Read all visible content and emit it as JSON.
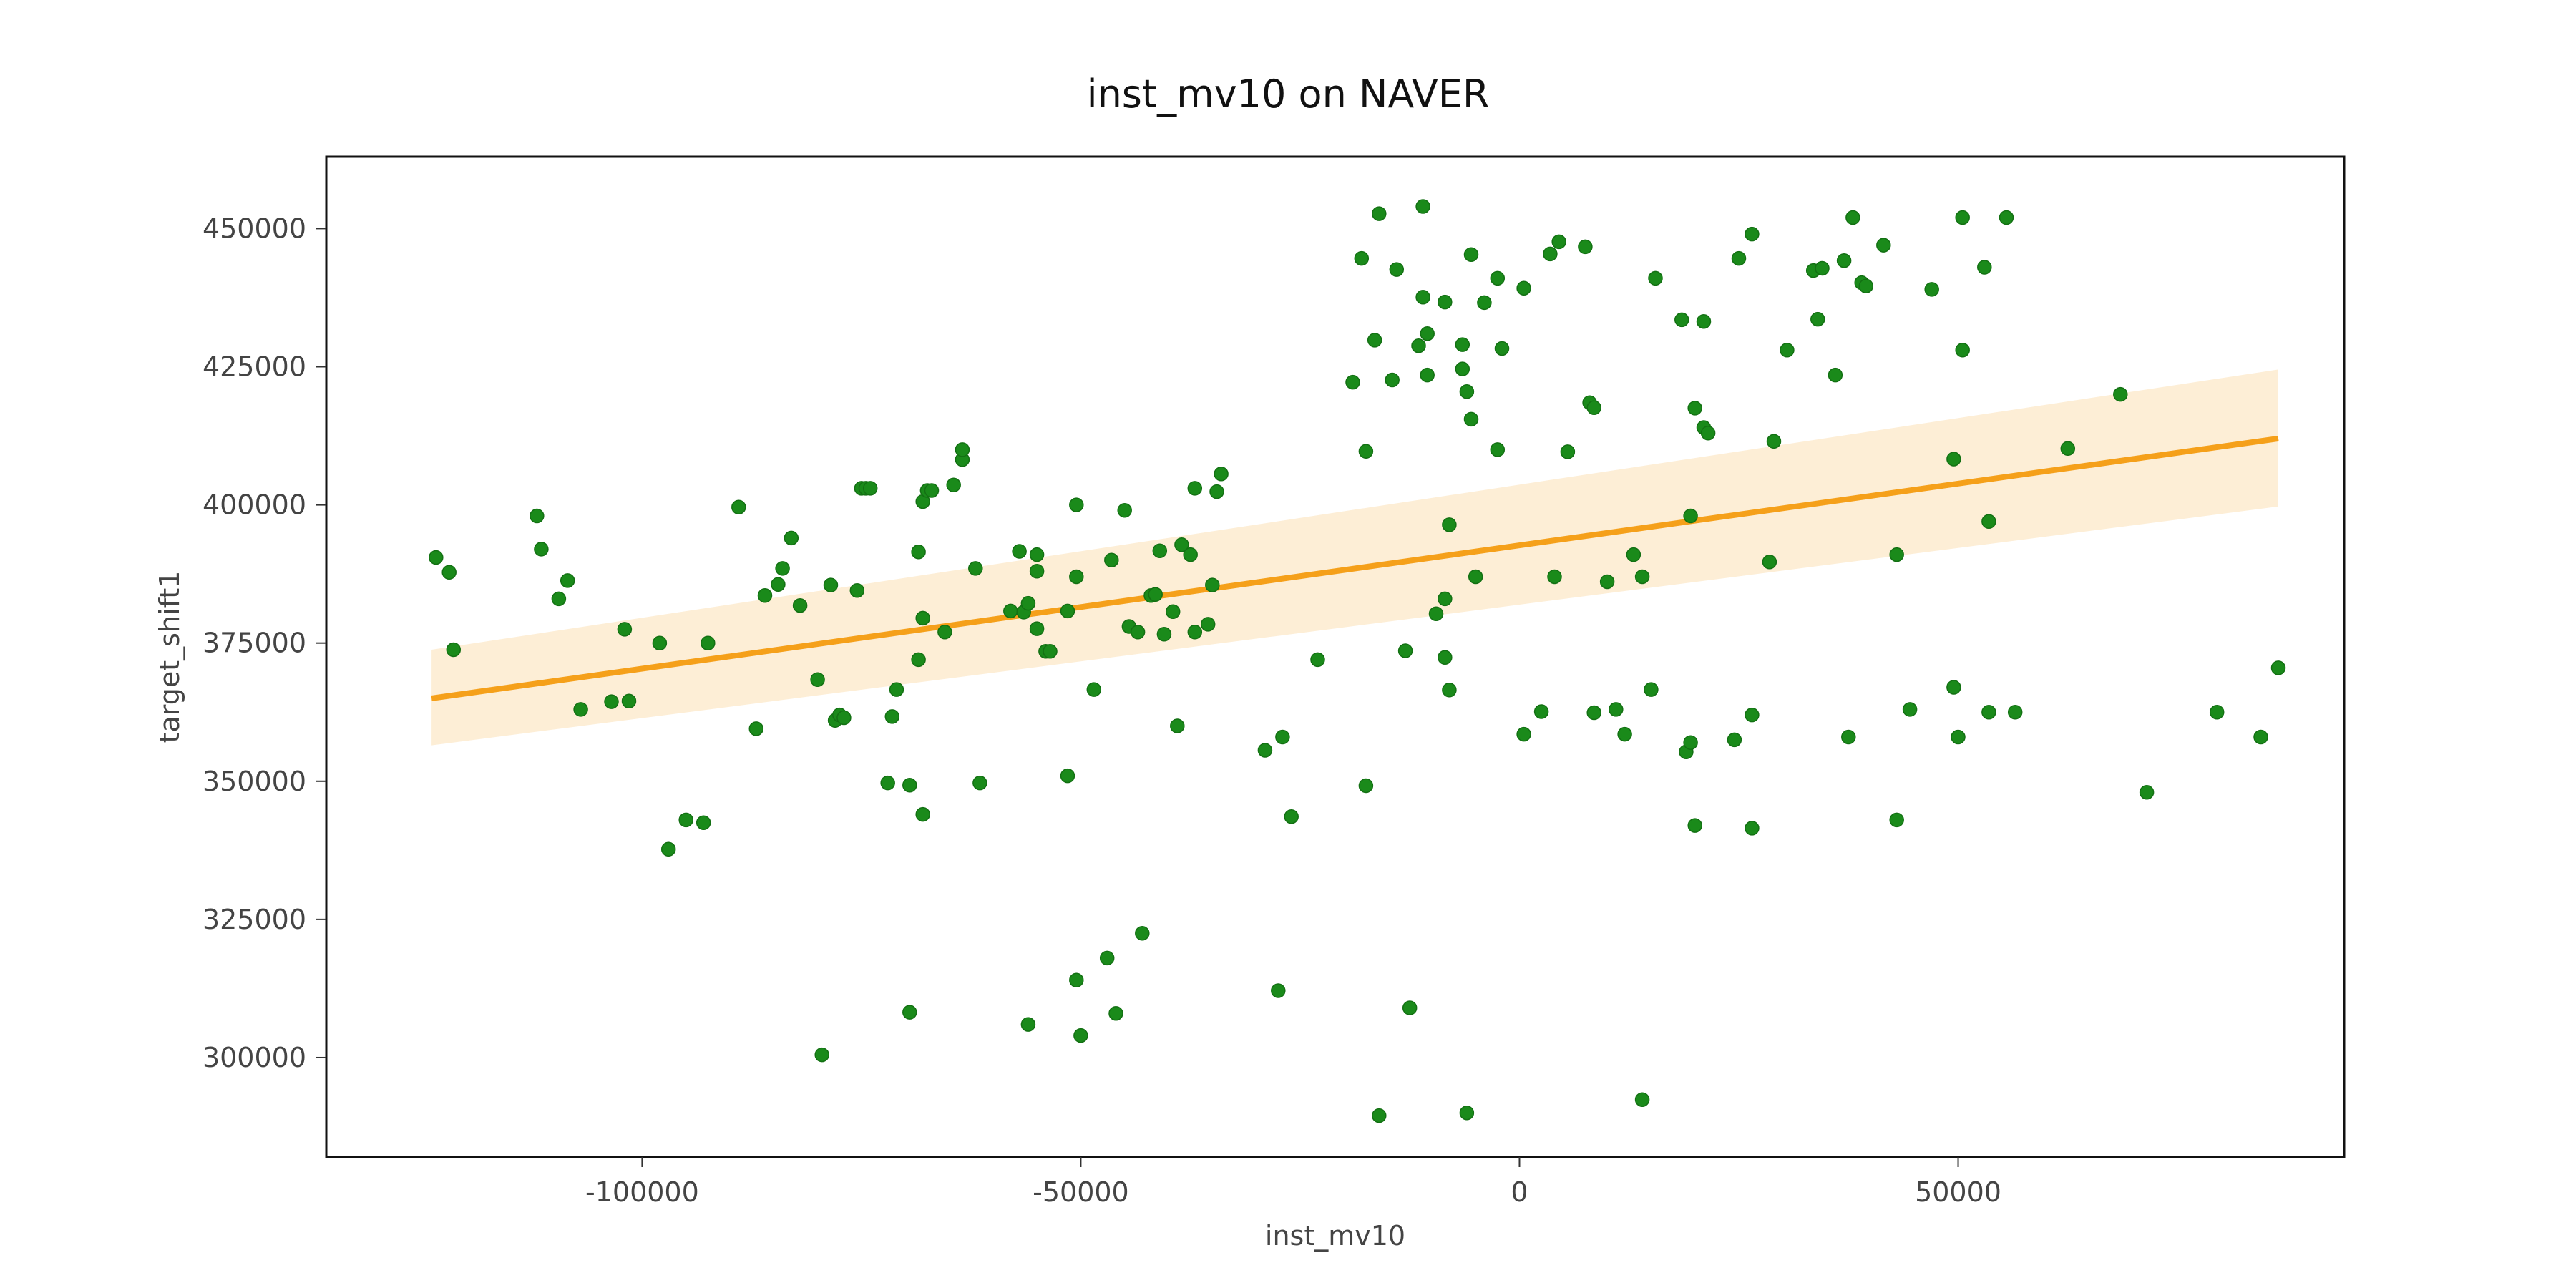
{
  "chart_data": {
    "type": "scatter",
    "title": "inst_mv10 on NAVER",
    "xlabel": "inst_mv10",
    "ylabel": "target_shift1",
    "xlim": [
      -136000,
      94000
    ],
    "ylim": [
      282000,
      463000
    ],
    "xticks": [
      -100000,
      -50000,
      0,
      50000
    ],
    "yticks": [
      300000,
      325000,
      350000,
      375000,
      400000,
      425000,
      450000
    ],
    "grid": false,
    "point_color": "#1a8a1a",
    "line_color": "#f5a01a",
    "band_color": "#fdeed6",
    "regression": {
      "x": [
        -124000,
        86500
      ],
      "y": [
        365000,
        412000
      ],
      "ci_lower": [
        356500,
        399700
      ],
      "ci_upper": [
        373800,
        424500
      ]
    },
    "points": [
      [
        -123500,
        390500
      ],
      [
        -122000,
        387800
      ],
      [
        -121500,
        373800
      ],
      [
        -112000,
        398000
      ],
      [
        -111500,
        392000
      ],
      [
        -109500,
        383000
      ],
      [
        -108500,
        386300
      ],
      [
        -107000,
        363000
      ],
      [
        -103500,
        364400
      ],
      [
        -102000,
        377500
      ],
      [
        -101500,
        364500
      ],
      [
        -98000,
        375000
      ],
      [
        -97000,
        337700
      ],
      [
        -95000,
        343000
      ],
      [
        -93000,
        342500
      ],
      [
        -92500,
        375000
      ],
      [
        -89000,
        399600
      ],
      [
        -87000,
        359500
      ],
      [
        -86000,
        383600
      ],
      [
        -84500,
        385600
      ],
      [
        -84000,
        388500
      ],
      [
        -83000,
        394000
      ],
      [
        -82000,
        381800
      ],
      [
        -80000,
        368400
      ],
      [
        -79500,
        300500
      ],
      [
        -78500,
        385500
      ],
      [
        -78000,
        361000
      ],
      [
        -77500,
        362000
      ],
      [
        -77000,
        361500
      ],
      [
        -75500,
        384500
      ],
      [
        -75000,
        403000
      ],
      [
        -74500,
        403000
      ],
      [
        -74000,
        403000
      ],
      [
        -72000,
        349700
      ],
      [
        -71500,
        361700
      ],
      [
        -71000,
        366600
      ],
      [
        -69500,
        349300
      ],
      [
        -69500,
        308200
      ],
      [
        -68500,
        391500
      ],
      [
        -68500,
        372000
      ],
      [
        -68000,
        344000
      ],
      [
        -68000,
        379500
      ],
      [
        -68000,
        400600
      ],
      [
        -67500,
        402600
      ],
      [
        -67000,
        402600
      ],
      [
        -65500,
        377000
      ],
      [
        -64500,
        403600
      ],
      [
        -63500,
        408200
      ],
      [
        -63500,
        410000
      ],
      [
        -62000,
        388500
      ],
      [
        -61500,
        349700
      ],
      [
        -58000,
        380800
      ],
      [
        -57000,
        391600
      ],
      [
        -56500,
        380600
      ],
      [
        -56000,
        382200
      ],
      [
        -56000,
        306000
      ],
      [
        -55000,
        377600
      ],
      [
        -55000,
        388000
      ],
      [
        -55000,
        391000
      ],
      [
        -54000,
        373500
      ],
      [
        -53500,
        373500
      ],
      [
        -51500,
        351000
      ],
      [
        -51500,
        380800
      ],
      [
        -50500,
        387000
      ],
      [
        -50500,
        400000
      ],
      [
        -50500,
        314000
      ],
      [
        -50000,
        304000
      ],
      [
        -48500,
        366600
      ],
      [
        -47000,
        318000
      ],
      [
        -46500,
        390000
      ],
      [
        -46000,
        308000
      ],
      [
        -45000,
        399000
      ],
      [
        -44500,
        378000
      ],
      [
        -43500,
        377000
      ],
      [
        -43000,
        322500
      ],
      [
        -42000,
        383600
      ],
      [
        -41500,
        383800
      ],
      [
        -41000,
        391700
      ],
      [
        -40500,
        376600
      ],
      [
        -39500,
        380700
      ],
      [
        -39000,
        360000
      ],
      [
        -38500,
        392800
      ],
      [
        -37500,
        391000
      ],
      [
        -37000,
        377000
      ],
      [
        -37000,
        403000
      ],
      [
        -35500,
        378400
      ],
      [
        -35000,
        385500
      ],
      [
        -34500,
        402400
      ],
      [
        -34000,
        405600
      ],
      [
        -29000,
        355600
      ],
      [
        -27500,
        312100
      ],
      [
        -27000,
        358000
      ],
      [
        -26000,
        343600
      ],
      [
        -23000,
        372000
      ],
      [
        -19000,
        422200
      ],
      [
        -18000,
        444600
      ],
      [
        -17500,
        409700
      ],
      [
        -17500,
        349200
      ],
      [
        -16500,
        429800
      ],
      [
        -16000,
        452700
      ],
      [
        -16000,
        289500
      ],
      [
        -14500,
        422600
      ],
      [
        -14000,
        442600
      ],
      [
        -13000,
        373600
      ],
      [
        -12500,
        309000
      ],
      [
        -11500,
        428800
      ],
      [
        -11000,
        454000
      ],
      [
        -11000,
        437600
      ],
      [
        -10500,
        431000
      ],
      [
        -10500,
        423500
      ],
      [
        -9500,
        380300
      ],
      [
        -8500,
        436700
      ],
      [
        -8500,
        372400
      ],
      [
        -8500,
        383000
      ],
      [
        -8000,
        396400
      ],
      [
        -8000,
        366500
      ],
      [
        -6500,
        429000
      ],
      [
        -6500,
        424600
      ],
      [
        -6000,
        420500
      ],
      [
        -6000,
        290000
      ],
      [
        -5500,
        445300
      ],
      [
        -5500,
        415500
      ],
      [
        -5000,
        387000
      ],
      [
        -4000,
        436600
      ],
      [
        -2500,
        441000
      ],
      [
        -2500,
        410000
      ],
      [
        -2000,
        428300
      ],
      [
        500,
        439200
      ],
      [
        500,
        358500
      ],
      [
        2500,
        362600
      ],
      [
        3500,
        445400
      ],
      [
        4000,
        387000
      ],
      [
        4500,
        447600
      ],
      [
        5500,
        409600
      ],
      [
        7500,
        446700
      ],
      [
        8000,
        418500
      ],
      [
        8500,
        417600
      ],
      [
        8500,
        362400
      ],
      [
        10000,
        386100
      ],
      [
        11000,
        363000
      ],
      [
        12000,
        358500
      ],
      [
        13000,
        391000
      ],
      [
        14000,
        387000
      ],
      [
        14000,
        292400
      ],
      [
        15000,
        366600
      ],
      [
        15500,
        441000
      ],
      [
        18500,
        433500
      ],
      [
        19000,
        355300
      ],
      [
        19500,
        357000
      ],
      [
        19500,
        398000
      ],
      [
        20000,
        417500
      ],
      [
        20000,
        342000
      ],
      [
        21000,
        414000
      ],
      [
        21000,
        433200
      ],
      [
        21500,
        413000
      ],
      [
        24500,
        357500
      ],
      [
        25000,
        444600
      ],
      [
        26500,
        449000
      ],
      [
        26500,
        362000
      ],
      [
        26500,
        341500
      ],
      [
        28500,
        389700
      ],
      [
        29000,
        411500
      ],
      [
        30500,
        428000
      ],
      [
        33500,
        442400
      ],
      [
        34000,
        433600
      ],
      [
        34500,
        442800
      ],
      [
        36000,
        423500
      ],
      [
        37000,
        444200
      ],
      [
        37500,
        358000
      ],
      [
        38000,
        452000
      ],
      [
        39000,
        440200
      ],
      [
        39500,
        439600
      ],
      [
        41500,
        447000
      ],
      [
        43000,
        391000
      ],
      [
        43000,
        343000
      ],
      [
        44500,
        363000
      ],
      [
        47000,
        439000
      ],
      [
        49500,
        408300
      ],
      [
        49500,
        367000
      ],
      [
        50000,
        358000
      ],
      [
        50500,
        452000
      ],
      [
        50500,
        428000
      ],
      [
        53000,
        443000
      ],
      [
        53500,
        362500
      ],
      [
        53500,
        397000
      ],
      [
        55500,
        452000
      ],
      [
        56500,
        362500
      ],
      [
        62500,
        410200
      ],
      [
        68500,
        420000
      ],
      [
        71500,
        348000
      ],
      [
        79500,
        362500
      ],
      [
        84500,
        358000
      ],
      [
        86500,
        370500
      ]
    ]
  }
}
